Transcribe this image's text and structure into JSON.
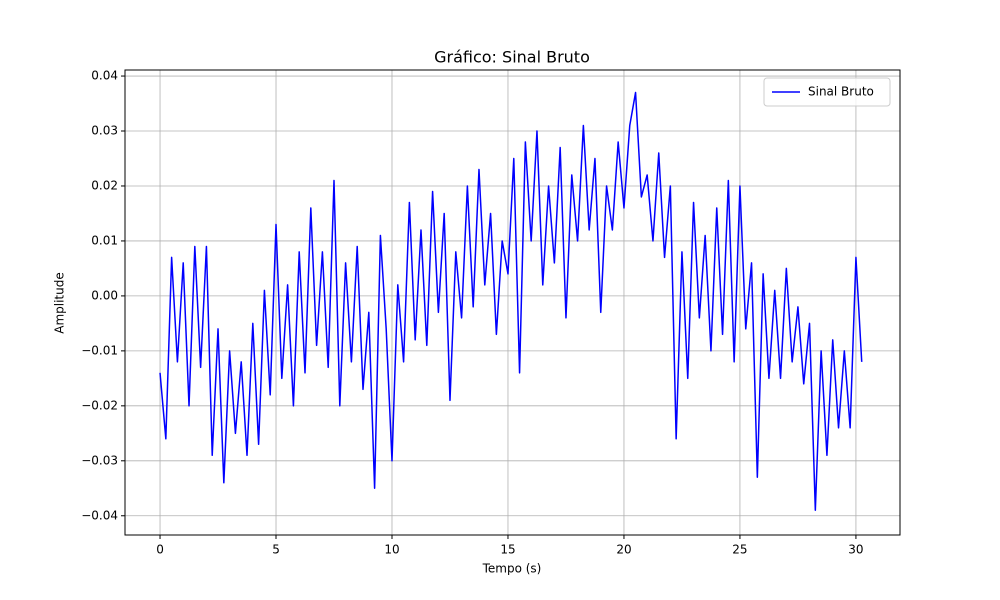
{
  "chart_data": {
    "type": "line",
    "title": "Gráfico: Sinal Bruto",
    "xlabel": "Tempo (s)",
    "ylabel": "Amplitude",
    "x": [
      0,
      0.25,
      0.5,
      0.75,
      1,
      1.25,
      1.5,
      1.75,
      2,
      2.25,
      2.5,
      2.75,
      3,
      3.25,
      3.5,
      3.75,
      4,
      4.25,
      4.5,
      4.75,
      5,
      5.25,
      5.5,
      5.75,
      6,
      6.25,
      6.5,
      6.75,
      7,
      7.25,
      7.5,
      7.75,
      8,
      8.25,
      8.5,
      8.75,
      9,
      9.25,
      9.5,
      9.75,
      10,
      10.25,
      10.5,
      10.75,
      11,
      11.25,
      11.5,
      11.75,
      12,
      12.25,
      12.5,
      12.75,
      13,
      13.25,
      13.5,
      13.75,
      14,
      14.25,
      14.5,
      14.75,
      15,
      15.25,
      15.5,
      15.75,
      16,
      16.25,
      16.5,
      16.75,
      17,
      17.25,
      17.5,
      17.75,
      18,
      18.25,
      18.5,
      18.75,
      19,
      19.25,
      19.5,
      19.75,
      20,
      20.25,
      20.5,
      20.75,
      21,
      21.25,
      21.5,
      21.75,
      22,
      22.25,
      22.5,
      22.75,
      23,
      23.25,
      23.5,
      23.75,
      24,
      24.25,
      24.5,
      24.75,
      25,
      25.25,
      25.5,
      25.75,
      26,
      26.25,
      26.5,
      26.75,
      27,
      27.25,
      27.5,
      27.75,
      28,
      28.25,
      28.5,
      28.75,
      29,
      29.25,
      29.5,
      29.75,
      30,
      30.25
    ],
    "series": [
      {
        "name": "Sinal Bruto",
        "color": "#0000ff",
        "values": [
          -0.014,
          -0.026,
          0.007,
          -0.012,
          0.006,
          -0.02,
          0.009,
          -0.013,
          0.009,
          -0.029,
          -0.006,
          -0.034,
          -0.01,
          -0.025,
          -0.012,
          -0.029,
          -0.005,
          -0.027,
          0.001,
          -0.018,
          0.013,
          -0.015,
          0.002,
          -0.02,
          0.008,
          -0.014,
          0.016,
          -0.009,
          0.008,
          -0.013,
          0.021,
          -0.02,
          0.006,
          -0.012,
          0.009,
          -0.017,
          -0.003,
          -0.035,
          0.011,
          -0.006,
          -0.03,
          0.002,
          -0.012,
          0.017,
          -0.008,
          0.012,
          -0.009,
          0.019,
          -0.003,
          0.015,
          -0.019,
          0.008,
          -0.004,
          0.02,
          -0.002,
          0.023,
          0.002,
          0.015,
          -0.007,
          0.01,
          0.004,
          0.025,
          -0.014,
          0.028,
          0.01,
          0.03,
          0.002,
          0.02,
          0.006,
          0.027,
          -0.004,
          0.022,
          0.01,
          0.031,
          0.012,
          0.025,
          -0.003,
          0.02,
          0.012,
          0.028,
          0.016,
          0.031,
          0.037,
          0.018,
          0.022,
          0.01,
          0.026,
          0.007,
          0.02,
          -0.026,
          0.008,
          -0.015,
          0.017,
          -0.004,
          0.011,
          -0.01,
          0.016,
          -0.007,
          0.021,
          -0.012,
          0.02,
          -0.006,
          0.006,
          -0.033,
          0.004,
          -0.015,
          0.001,
          -0.015,
          0.005,
          -0.012,
          -0.002,
          -0.016,
          -0.005,
          -0.039,
          -0.01,
          -0.029,
          -0.008,
          -0.024,
          -0.01,
          -0.024,
          0.007,
          -0.012
        ]
      }
    ],
    "xlim": [
      -1.51,
      31.9
    ],
    "xticks": [
      0,
      5,
      10,
      15,
      20,
      25,
      30
    ],
    "ylim": [
      -0.0435,
      0.0411
    ],
    "yticks": [
      {
        "value": -0.04,
        "label": "−0.04"
      },
      {
        "value": -0.03,
        "label": "−0.03"
      },
      {
        "value": -0.02,
        "label": "−0.02"
      },
      {
        "value": -0.01,
        "label": "−0.01"
      },
      {
        "value": 0,
        "label": "0.00"
      },
      0.01,
      0.02,
      0.03,
      0.04
    ],
    "grid": true,
    "legend": "upper right"
  }
}
